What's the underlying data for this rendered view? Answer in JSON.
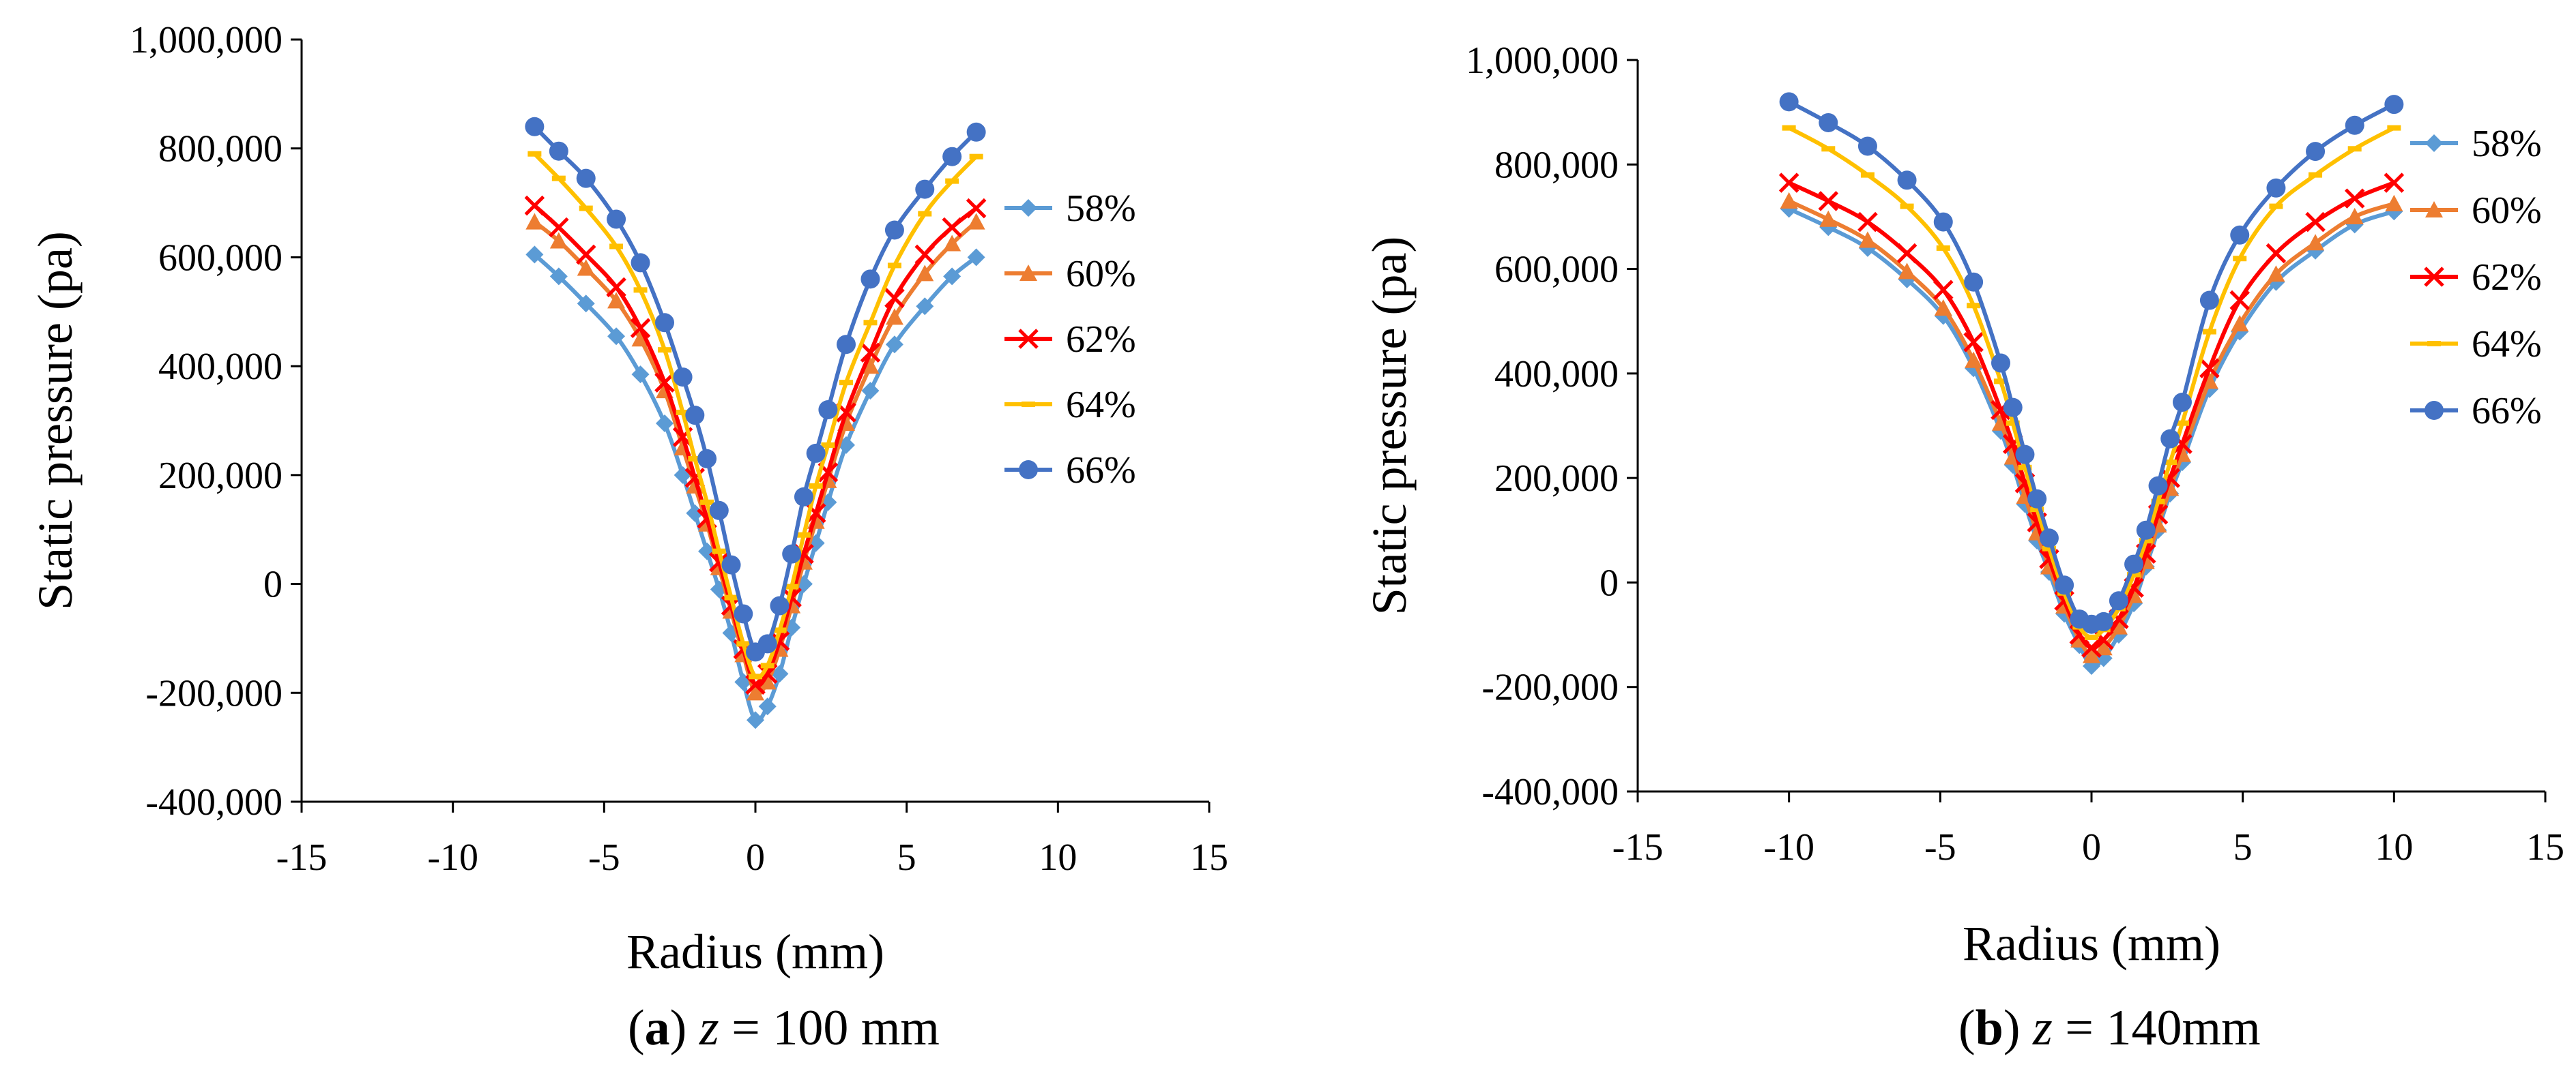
{
  "chart_data": [
    {
      "type": "line",
      "caption": {
        "letter": "a",
        "var": "z",
        "rest": " = 100 mm"
      },
      "xlabel": "Radius (mm)",
      "ylabel": "Static pressure (pa)",
      "xlim": [
        -15,
        15
      ],
      "ylim": [
        -400000,
        1000000
      ],
      "xticks": [
        -15,
        -10,
        -5,
        0,
        5,
        10,
        15
      ],
      "yticks": [
        -400000,
        -200000,
        0,
        200000,
        400000,
        600000,
        800000,
        1000000
      ],
      "xtick_labels": [
        "-15",
        "-10",
        "-5",
        "0",
        "5",
        "10",
        "15"
      ],
      "ytick_labels": [
        "-400,000",
        "-200,000",
        "0",
        "200,000",
        "400,000",
        "600,000",
        "800,000",
        "1,000,000"
      ],
      "legend_position": "right",
      "x": [
        -7.3,
        -6.5,
        -5.6,
        -4.6,
        -3.8,
        -3.0,
        -2.4,
        -2.0,
        -1.6,
        -1.2,
        -0.8,
        -0.4,
        0.0,
        0.4,
        0.8,
        1.2,
        1.6,
        2.0,
        2.4,
        3.0,
        3.8,
        4.6,
        5.6,
        6.5,
        7.3
      ],
      "series": [
        {
          "name": "58%",
          "color": "#5b9bd5",
          "marker": "diamond",
          "values": [
            605000,
            565000,
            515000,
            455000,
            385000,
            295000,
            200000,
            130000,
            60000,
            -10000,
            -90000,
            -180000,
            -250000,
            -225000,
            -165000,
            -80000,
            0,
            75000,
            150000,
            255000,
            355000,
            440000,
            510000,
            565000,
            600000
          ]
        },
        {
          "name": "60%",
          "color": "#ed7d31",
          "marker": "triangle",
          "values": [
            665000,
            630000,
            580000,
            520000,
            450000,
            355000,
            250000,
            180000,
            110000,
            30000,
            -50000,
            -130000,
            -200000,
            -180000,
            -120000,
            -40000,
            40000,
            115000,
            190000,
            295000,
            400000,
            490000,
            570000,
            625000,
            665000
          ]
        },
        {
          "name": "62%",
          "color": "#ff0000",
          "marker": "x",
          "values": [
            695000,
            655000,
            605000,
            545000,
            470000,
            370000,
            270000,
            195000,
            120000,
            40000,
            -40000,
            -120000,
            -185000,
            -165000,
            -105000,
            -25000,
            55000,
            130000,
            205000,
            315000,
            425000,
            525000,
            605000,
            655000,
            690000
          ]
        },
        {
          "name": "64%",
          "color": "#ffc000",
          "marker": "dash",
          "values": [
            790000,
            745000,
            690000,
            620000,
            540000,
            430000,
            315000,
            230000,
            150000,
            60000,
            -25000,
            -110000,
            -170000,
            -150000,
            -85000,
            -5000,
            90000,
            180000,
            255000,
            370000,
            480000,
            585000,
            680000,
            740000,
            785000
          ]
        },
        {
          "name": "66%",
          "color": "#4472c4",
          "marker": "circle",
          "values": [
            840000,
            795000,
            745000,
            670000,
            590000,
            480000,
            380000,
            310000,
            230000,
            135000,
            35000,
            -55000,
            -125000,
            -110000,
            -40000,
            55000,
            160000,
            240000,
            320000,
            440000,
            560000,
            650000,
            725000,
            785000,
            830000
          ]
        }
      ]
    },
    {
      "type": "line",
      "caption": {
        "letter": "b",
        "var": "z",
        "rest": " = 140mm"
      },
      "xlabel": "Radius (mm)",
      "ylabel": "Static pressure (pa)",
      "xlim": [
        -15,
        15
      ],
      "ylim": [
        -400000,
        1000000
      ],
      "xticks": [
        -15,
        -10,
        -5,
        0,
        5,
        10,
        15
      ],
      "yticks": [
        -400000,
        -200000,
        0,
        200000,
        400000,
        600000,
        800000,
        1000000
      ],
      "xtick_labels": [
        "-15",
        "-10",
        "-5",
        "0",
        "5",
        "10",
        "15"
      ],
      "ytick_labels": [
        "-400,000",
        "-200,000",
        "0",
        "200,000",
        "400,000",
        "600,000",
        "800,000",
        "1,000,000"
      ],
      "legend_position": "right",
      "x": [
        -10.0,
        -8.7,
        -7.4,
        -6.1,
        -4.9,
        -3.9,
        -3.0,
        -2.6,
        -2.2,
        -1.8,
        -1.4,
        -0.9,
        -0.4,
        0.0,
        0.4,
        0.9,
        1.4,
        1.8,
        2.2,
        2.6,
        3.0,
        3.9,
        4.9,
        6.1,
        7.4,
        8.7,
        10.0
      ],
      "series": [
        {
          "name": "58%",
          "color": "#5b9bd5",
          "marker": "diamond",
          "values": [
            715000,
            680000,
            640000,
            580000,
            510000,
            410000,
            290000,
            225000,
            150000,
            80000,
            20000,
            -60000,
            -120000,
            -160000,
            -145000,
            -100000,
            -40000,
            30000,
            100000,
            170000,
            230000,
            370000,
            480000,
            575000,
            635000,
            685000,
            710000
          ]
        },
        {
          "name": "60%",
          "color": "#ed7d31",
          "marker": "triangle",
          "values": [
            730000,
            695000,
            655000,
            595000,
            525000,
            425000,
            305000,
            240000,
            165000,
            95000,
            30000,
            -45000,
            -110000,
            -140000,
            -125000,
            -85000,
            -25000,
            40000,
            110000,
            180000,
            245000,
            385000,
            495000,
            590000,
            650000,
            700000,
            725000
          ]
        },
        {
          "name": "62%",
          "color": "#ff0000",
          "marker": "x",
          "values": [
            765000,
            730000,
            690000,
            630000,
            560000,
            460000,
            330000,
            265000,
            190000,
            115000,
            45000,
            -35000,
            -100000,
            -125000,
            -110000,
            -70000,
            -10000,
            55000,
            130000,
            200000,
            265000,
            410000,
            540000,
            630000,
            690000,
            735000,
            765000
          ]
        },
        {
          "name": "64%",
          "color": "#ffc000",
          "marker": "dash",
          "values": [
            870000,
            830000,
            780000,
            720000,
            640000,
            530000,
            385000,
            305000,
            220000,
            140000,
            65000,
            -20000,
            -85000,
            -105000,
            -90000,
            -50000,
            15000,
            80000,
            155000,
            230000,
            305000,
            480000,
            620000,
            720000,
            780000,
            830000,
            870000
          ]
        },
        {
          "name": "66%",
          "color": "#4472c4",
          "marker": "circle",
          "values": [
            920000,
            880000,
            835000,
            770000,
            690000,
            575000,
            420000,
            335000,
            245000,
            160000,
            85000,
            -5000,
            -70000,
            -80000,
            -75000,
            -35000,
            35000,
            100000,
            185000,
            275000,
            345000,
            540000,
            665000,
            755000,
            825000,
            875000,
            915000
          ]
        }
      ]
    }
  ]
}
